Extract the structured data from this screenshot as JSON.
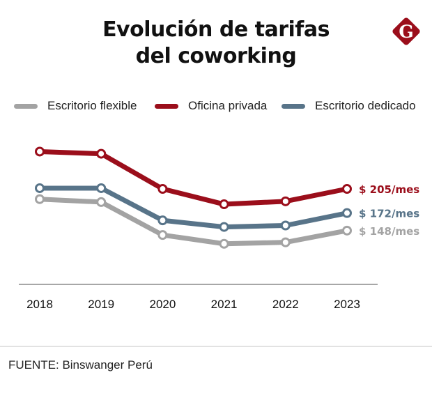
{
  "header": {
    "title_line1": "Evolución de tarifas",
    "title_line2": "del coworking",
    "logo_letter": "G",
    "logo_color": "#9b0e1b"
  },
  "legend": [
    {
      "label": "Escritorio flexible",
      "color": "#a3a3a3"
    },
    {
      "label": "Oficina privada",
      "color": "#9b0e1b"
    },
    {
      "label": "Escritorio dedicado",
      "color": "#587489"
    }
  ],
  "chart_data": {
    "type": "line",
    "title": "Evolución de tarifas del coworking",
    "xlabel": "",
    "ylabel": "",
    "x": [
      "2018",
      "2019",
      "2020",
      "2021",
      "2022",
      "2023"
    ],
    "ylim": [
      90,
      270
    ],
    "grid": false,
    "legend_position": "top",
    "series": [
      {
        "name": "Oficina privada",
        "color": "#9b0e1b",
        "values": [
          256,
          253,
          205,
          184,
          188,
          205
        ],
        "end_label": "$ 205/mes"
      },
      {
        "name": "Escritorio dedicado",
        "color": "#587489",
        "values": [
          206,
          206,
          162,
          153,
          155,
          172
        ],
        "end_label": "$ 172/mes"
      },
      {
        "name": "Escritorio flexible",
        "color": "#a3a3a3",
        "values": [
          191,
          187,
          142,
          130,
          132,
          148
        ],
        "end_label": "$ 148/mes"
      }
    ]
  },
  "footer": {
    "source": "FUENTE: Binswanger Perú"
  }
}
